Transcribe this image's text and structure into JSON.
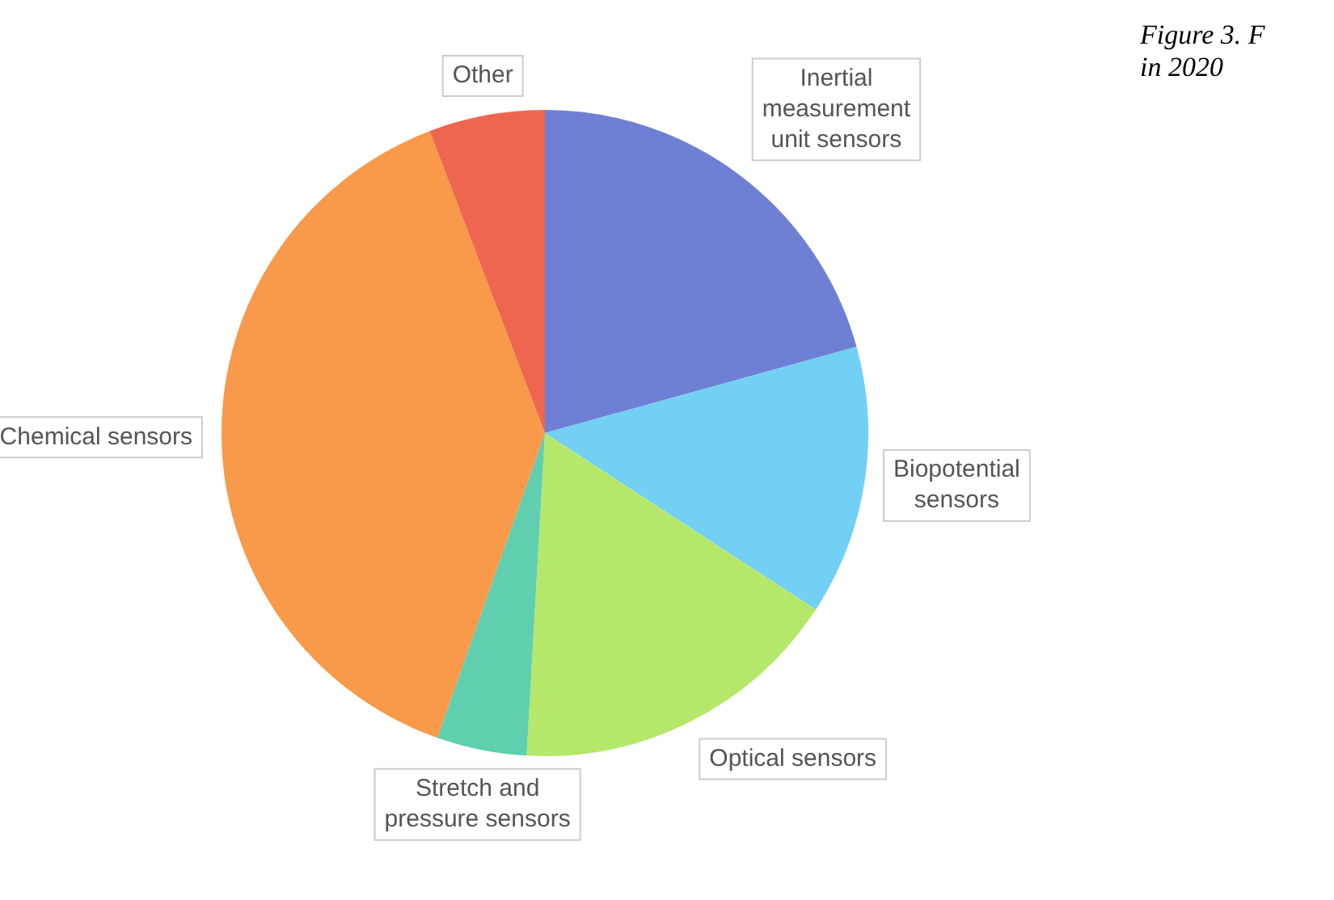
{
  "chart_data": {
    "type": "pie",
    "categories": [
      "Inertial measurement unit sensors",
      "Biopotential sensors",
      "Optical sensors",
      "Stretch and pressure sensors",
      "Chemical sensors",
      "Other"
    ],
    "values": [
      20.7,
      13.5,
      16.7,
      4.5,
      38.8,
      5.8
    ],
    "colors": [
      "#6f80d4",
      "#72d0f4",
      "#b5e86a",
      "#5fcfb0",
      "#f9994a",
      "#ee6650"
    ],
    "legend": false,
    "annotations": [
      "Figure 3. F",
      "in 2020"
    ]
  }
}
